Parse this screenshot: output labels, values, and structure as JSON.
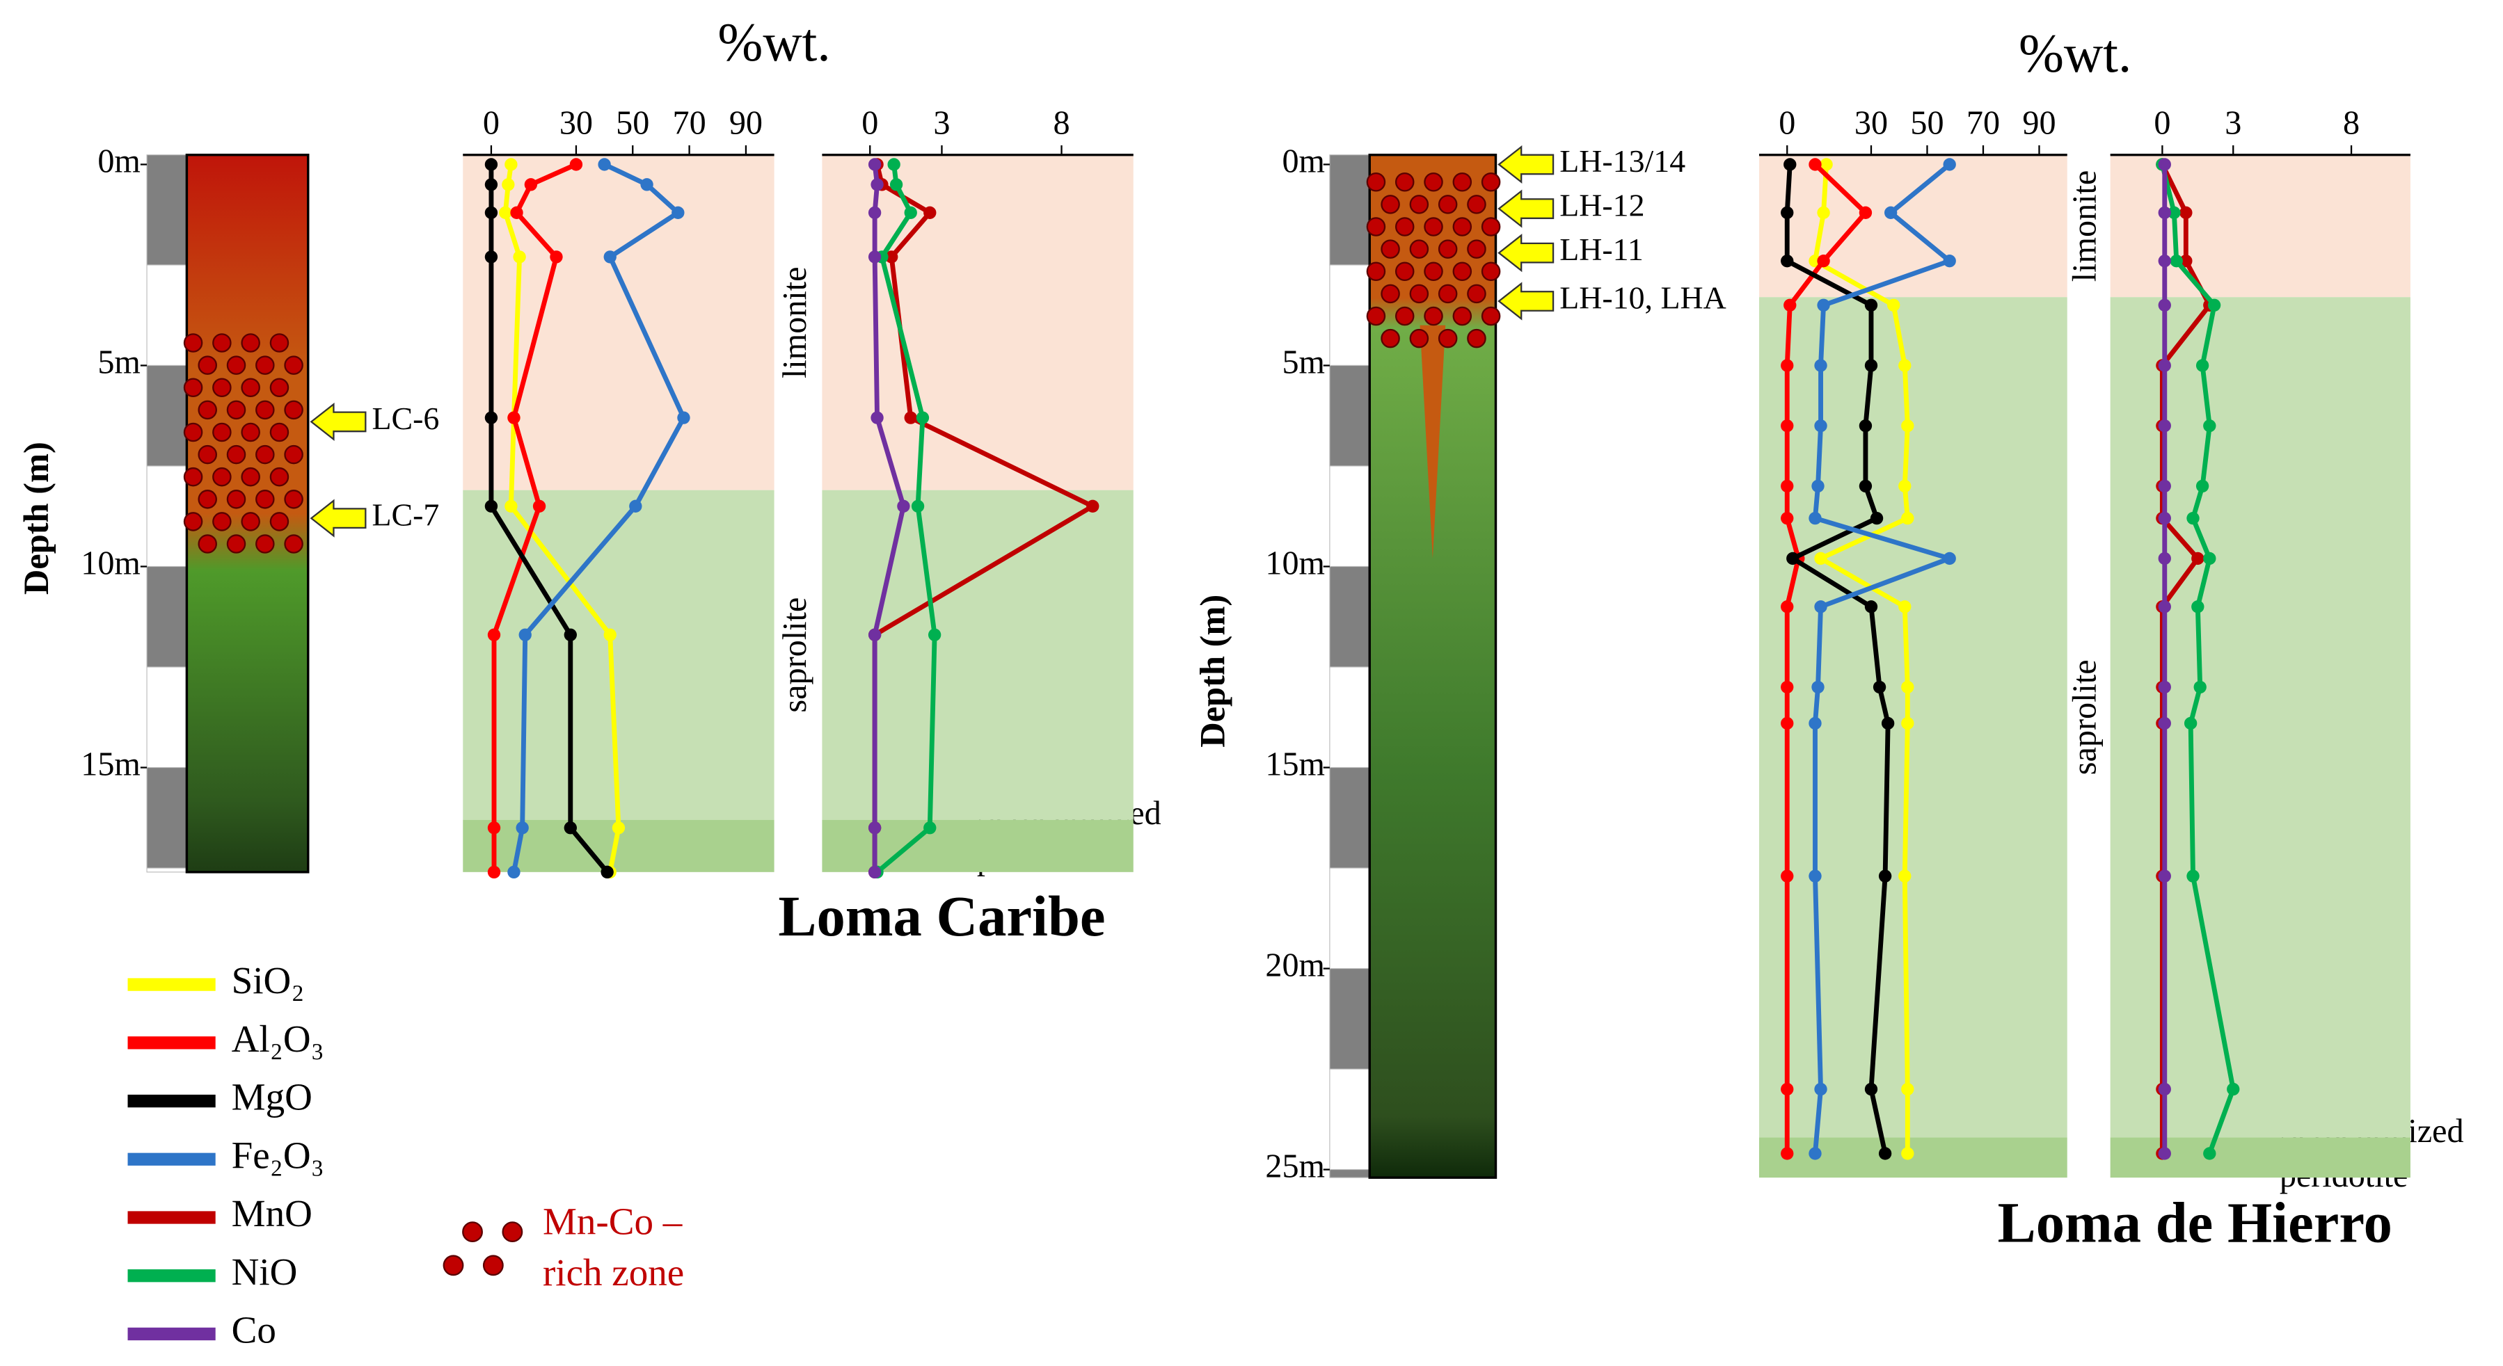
{
  "chart_data": {
    "type": "depth_profile",
    "legend": [
      {
        "name": "SiO₂",
        "color": "#ffff00"
      },
      {
        "name": "Al₂O₃",
        "color": "#ff0000"
      },
      {
        "name": "MgO",
        "color": "#000000"
      },
      {
        "name": "Fe₂O₃",
        "color": "#2e75c8"
      },
      {
        "name": "MnO",
        "color": "#c00000"
      },
      {
        "name": "NiO",
        "color": "#00b050"
      },
      {
        "name": "Co",
        "color": "#7030a0"
      }
    ],
    "zone_legend": [
      "Mn-Co –",
      "rich zone"
    ],
    "sites": [
      {
        "name": "Loma Caribe",
        "unit_label": "%wt.",
        "depth_label": "Depth (m)",
        "ylim": [
          0,
          17.6
        ],
        "yticks": [
          {
            "value": 0,
            "label": "0m"
          },
          {
            "value": 5,
            "label": "5m"
          },
          {
            "value": 10,
            "label": "10m"
          },
          {
            "value": 15,
            "label": "15m"
          }
        ],
        "zones": [
          {
            "name": "limonite",
            "bottom": 8.1,
            "color": "#fbe3d5"
          },
          {
            "name": "saprolite",
            "bottom": 16.3,
            "color": "#c6e0b4"
          },
          {
            "name": [
              "Serpentinized",
              "peridotite"
            ],
            "bottom": 17.6,
            "color": "#a9d18e"
          }
        ],
        "mn_co_zone": {
          "top": 4.2,
          "bottom": 9.5
        },
        "samples": [
          {
            "label": "LC-6",
            "depth": 6.4
          },
          {
            "label": "LC-7",
            "depth": 8.8
          }
        ],
        "depths": [
          0,
          0.5,
          1.2,
          2.3,
          6.3,
          8.5,
          11.7,
          16.5,
          17.6
        ],
        "major": {
          "xlim": [
            -10,
            100
          ],
          "xticks": [
            0,
            30,
            50,
            70,
            90
          ],
          "series": [
            [
              7,
              6,
              5,
              10,
              8,
              7,
              42,
              45,
              42
            ],
            [
              30,
              14,
              9,
              23,
              8,
              17,
              1,
              1,
              1
            ],
            [
              0,
              0,
              0,
              0,
              0,
              0,
              28,
              28,
              41
            ],
            [
              40,
              55,
              66,
              42,
              68,
              51,
              12,
              11,
              8
            ]
          ]
        },
        "minor": {
          "xlim": [
            -2,
            11
          ],
          "xticks": [
            0,
            3,
            8
          ],
          "series": [
            [
              0.3,
              0.5,
              2.5,
              0.9,
              1.7,
              9.3,
              0.2,
              0.2,
              0.2
            ],
            [
              1,
              1.1,
              1.7,
              0.5,
              2.2,
              2,
              2.7,
              2.5,
              0.3
            ],
            [
              0.2,
              0.3,
              0.2,
              0.2,
              0.3,
              1.4,
              0.2,
              0.2,
              0.2
            ]
          ]
        }
      },
      {
        "name": "Loma de Hierro",
        "unit_label": "%wt.",
        "depth_label": "Depth (m)",
        "ylim": [
          0,
          25.2
        ],
        "yticks": [
          {
            "value": 0,
            "label": "0m"
          },
          {
            "value": 5,
            "label": "5m"
          },
          {
            "value": 10,
            "label": "10m"
          },
          {
            "value": 15,
            "label": "15m"
          },
          {
            "value": 20,
            "label": "20m"
          },
          {
            "value": 25,
            "label": "25m"
          }
        ],
        "zones": [
          {
            "name": "limonite",
            "bottom": 3.3,
            "color": "#fbe3d5"
          },
          {
            "name": "saprolite",
            "bottom": 24.2,
            "color": "#c6e0b4"
          },
          {
            "name": [
              "Serpentinized",
              "peridotite"
            ],
            "bottom": 25.2,
            "color": "#a9d18e"
          }
        ],
        "mn_co_zone": {
          "top": 0.2,
          "bottom": 4.5
        },
        "samples": [
          {
            "label": "LH-13/14",
            "depth": 0
          },
          {
            "label": "LH-12",
            "depth": 1.1
          },
          {
            "label": "LH-11",
            "depth": 2.2
          },
          {
            "label": "LH-10, LHA",
            "depth": 3.4
          }
        ],
        "depths": [
          0,
          1.2,
          2.4,
          3.5,
          5,
          6.5,
          8,
          8.8,
          9.8,
          11,
          13,
          13.9,
          17.7,
          23,
          24.6
        ],
        "major": {
          "xlim": [
            -10,
            100
          ],
          "xticks": [
            0,
            30,
            50,
            70,
            90
          ],
          "series": [
            [
              14,
              13,
              10,
              38,
              42,
              43,
              42,
              43,
              12,
              42,
              43,
              43,
              42,
              43,
              43
            ],
            [
              10,
              28,
              13,
              1,
              0,
              0,
              0,
              0,
              4,
              0,
              0,
              0,
              0,
              0,
              0
            ],
            [
              1,
              0,
              0,
              30,
              30,
              28,
              28,
              32,
              2,
              30,
              33,
              36,
              35,
              30,
              35
            ],
            [
              58,
              37,
              58,
              13,
              12,
              12,
              11,
              10,
              58,
              12,
              11,
              10,
              10,
              12,
              10
            ]
          ]
        },
        "minor": {
          "xlim": [
            -2.2,
            10.5
          ],
          "xticks": [
            0,
            3,
            8
          ],
          "series": [
            [
              0,
              1,
              1,
              2,
              0,
              0,
              0,
              0,
              1.5,
              0,
              0,
              0,
              0,
              0,
              0
            ],
            [
              0,
              0.5,
              0.6,
              2.2,
              1.7,
              2,
              1.7,
              1.3,
              2,
              1.5,
              1.6,
              1.2,
              1.3,
              3,
              2
            ],
            [
              0.1,
              0.1,
              0.1,
              0.1,
              0.1,
              0.1,
              0.1,
              0.1,
              0.1,
              0.1,
              0.1,
              0.1,
              0.1,
              0.1,
              0.1
            ]
          ]
        }
      }
    ]
  }
}
